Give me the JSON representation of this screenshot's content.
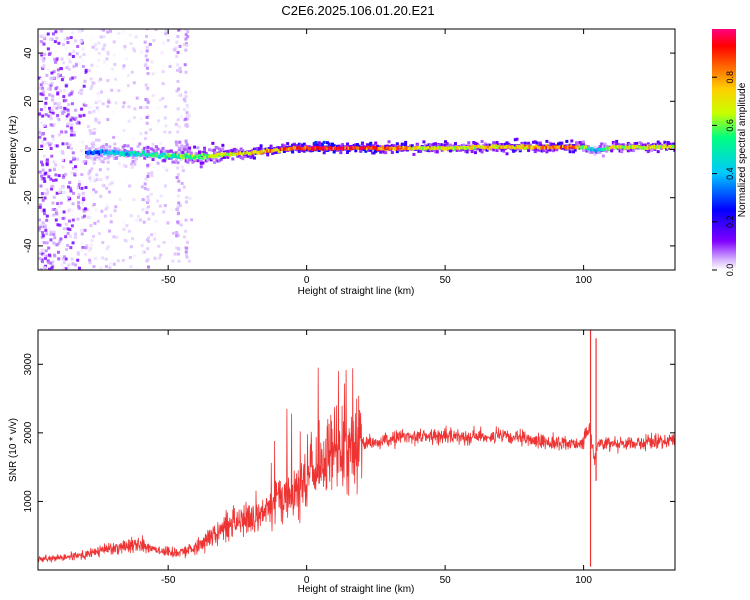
{
  "title": "C2E6.2025.106.01.20.E21",
  "chart_data": [
    {
      "type": "heatmap",
      "name": "spectrogram",
      "xlabel": "Height of straight line (km)",
      "ylabel": "Frequency (Hz)",
      "xlim": [
        -97,
        133
      ],
      "ylim": [
        -50,
        50
      ],
      "xticks": [
        -50,
        0,
        50,
        100
      ],
      "yticks": [
        -40,
        -20,
        0,
        20,
        40
      ],
      "colorbar": {
        "label": "Normalized spectral amplitude",
        "range": [
          0,
          1
        ],
        "ticks": [
          0.0,
          0.2,
          0.4,
          0.6,
          0.8
        ],
        "colors": [
          "#ffffff",
          "#d8b8ff",
          "#8000ff",
          "#0000ff",
          "#00c8ff",
          "#00ff80",
          "#c8ff00",
          "#ffd000",
          "#ff6000",
          "#ff0000",
          "#ff0080"
        ]
      },
      "ridge": {
        "x": [
          -80,
          -70,
          -60,
          -50,
          -40,
          -30,
          -20,
          -10,
          -5,
          0,
          10,
          20,
          30,
          40,
          50,
          60,
          70,
          80,
          90,
          95,
          100,
          104,
          110,
          120,
          133
        ],
        "y": [
          -1,
          -1.5,
          -2,
          -2.5,
          -3,
          -2,
          -1.5,
          0,
          0.5,
          0.5,
          0.5,
          0.5,
          0.5,
          0.5,
          0.5,
          0.8,
          1,
          1,
          1,
          1,
          1,
          -0.5,
          1,
          1,
          1
        ],
        "amplitude": [
          0.35,
          0.45,
          0.5,
          0.55,
          0.6,
          0.7,
          0.75,
          0.85,
          0.9,
          0.95,
          0.95,
          0.95,
          0.85,
          0.75,
          0.7,
          0.7,
          0.75,
          0.8,
          0.85,
          0.85,
          0.6,
          0.4,
          0.7,
          0.7,
          0.7
        ]
      },
      "noise_region_km": [
        -97,
        -42
      ]
    },
    {
      "type": "line",
      "name": "snr",
      "xlabel": "Height of straight line (km)",
      "ylabel": "SNR (10 * v/v)",
      "xlim": [
        -97,
        133
      ],
      "ylim": [
        0,
        3500
      ],
      "xticks": [
        -50,
        0,
        50,
        100
      ],
      "yticks": [
        1000,
        2000,
        3000
      ],
      "color": "#ee3333",
      "series": [
        {
          "x": [
            -97,
            -90,
            -80,
            -70,
            -60,
            -50,
            -45,
            -40,
            -35,
            -30,
            -25,
            -20,
            -15,
            -10,
            -5,
            0,
            5,
            10,
            15,
            20,
            25,
            30,
            35,
            40,
            50,
            60,
            70,
            80,
            90,
            95,
            100,
            102,
            103,
            104,
            105,
            110,
            120,
            133
          ],
          "y": [
            150,
            170,
            220,
            330,
            380,
            250,
            280,
            320,
            500,
            600,
            750,
            700,
            850,
            1050,
            1150,
            1300,
            1500,
            1700,
            1800,
            1850,
            1850,
            1900,
            1950,
            1950,
            1950,
            1950,
            1950,
            1900,
            1850,
            1850,
            1850,
            2100,
            1800,
            1600,
            1850,
            1850,
            1850,
            1900
          ]
        }
      ],
      "spikes": [
        {
          "x": 102.5,
          "y_max": 3500,
          "y_min": 50
        },
        {
          "x": 104.5,
          "y_max": 3380,
          "y_min": 1300
        }
      ]
    }
  ]
}
